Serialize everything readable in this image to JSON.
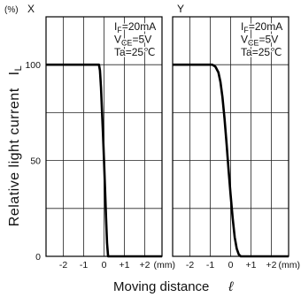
{
  "figure": {
    "unit_label": "(%)",
    "ylabel": {
      "text": "Relative light current",
      "symbol": "I",
      "sub": "L"
    },
    "xlabel": {
      "text": "Moving distance",
      "symbol": "ℓ"
    },
    "colors": {
      "curve": "#000000",
      "grid": "#222222",
      "background": "#ffffff"
    }
  },
  "chart_data": [
    {
      "type": "line",
      "title": "X",
      "x_unit": "(mm)",
      "xlim": [
        -2.85,
        2.85
      ],
      "ylim": [
        0,
        125
      ],
      "grid": true,
      "x_ticks": [
        {
          "value": -2,
          "label": "-2"
        },
        {
          "value": -1,
          "label": "-1"
        },
        {
          "value": 0,
          "label": "0"
        },
        {
          "value": 1,
          "label": "+1"
        },
        {
          "value": 2,
          "label": "+2"
        }
      ],
      "y_ticks": [
        {
          "value": 100,
          "label": "100"
        },
        {
          "value": 50,
          "label": "50"
        },
        {
          "value": 0,
          "label": "0"
        }
      ],
      "y_gridlines": [
        25,
        50,
        75,
        100
      ],
      "conditions": [
        {
          "symbol": "I",
          "sub": "F",
          "value": "=20mA"
        },
        {
          "symbol": "V",
          "sub": "CE",
          "value": "=5V"
        },
        {
          "symbol": "Ta",
          "value": "=25℃"
        }
      ],
      "series": [
        {
          "x": [
            -2.85,
            -0.25,
            -0.2,
            -0.15,
            -0.1,
            -0.05,
            0,
            0.05,
            0.1,
            0.15,
            0.2,
            2.85
          ],
          "y": [
            100,
            100,
            97,
            88,
            76,
            63,
            50,
            36,
            20,
            7,
            0,
            0
          ]
        }
      ]
    },
    {
      "type": "line",
      "title": "Y",
      "x_unit": "(mm)",
      "xlim": [
        -2.85,
        2.85
      ],
      "ylim": [
        0,
        125
      ],
      "grid": true,
      "x_ticks": [
        {
          "value": -2,
          "label": "-2"
        },
        {
          "value": -1,
          "label": "-1"
        },
        {
          "value": 0,
          "label": "0"
        },
        {
          "value": 1,
          "label": "+1"
        },
        {
          "value": 2,
          "label": "+2"
        }
      ],
      "y_ticks": [],
      "y_gridlines": [
        25,
        50,
        75,
        100
      ],
      "conditions": [
        {
          "symbol": "I",
          "sub": "F",
          "value": "=20mA"
        },
        {
          "symbol": "V",
          "sub": "CE",
          "value": "=5V"
        },
        {
          "symbol": "Ta",
          "value": "=25℃"
        }
      ],
      "series": [
        {
          "x": [
            -2.85,
            -0.9,
            -0.75,
            -0.6,
            -0.5,
            -0.4,
            -0.3,
            -0.2,
            -0.1,
            0,
            0.1,
            0.2,
            0.3,
            0.4,
            0.5,
            2.85
          ],
          "y": [
            100,
            100,
            99,
            96,
            91,
            83,
            72,
            59,
            45,
            32,
            20,
            10,
            4,
            1,
            0,
            0
          ]
        }
      ]
    }
  ]
}
